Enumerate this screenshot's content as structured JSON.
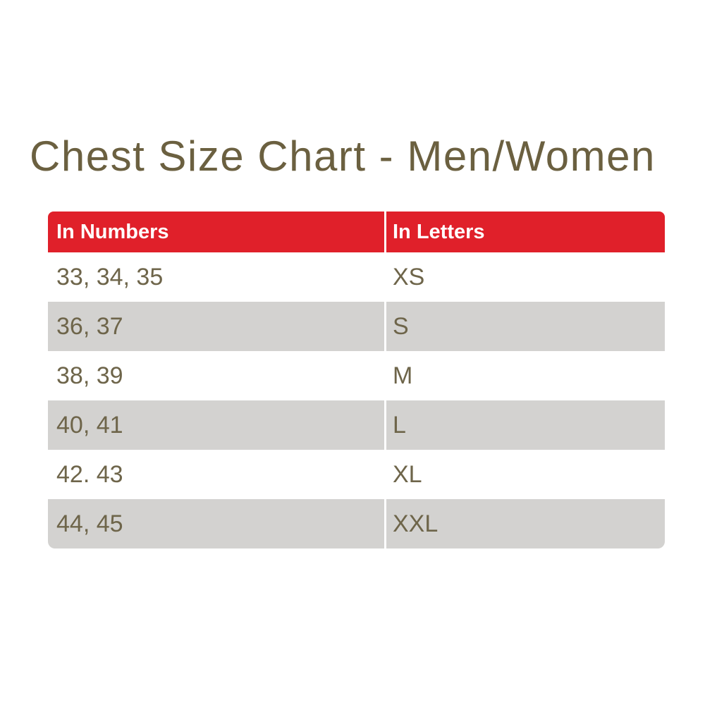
{
  "title": "Chest Size Chart - Men/Women",
  "chart_data": {
    "type": "table",
    "title": "Chest Size Chart - Men/Women",
    "columns": [
      "In Numbers",
      "In Letters"
    ],
    "rows": [
      [
        "33, 34, 35",
        "XS"
      ],
      [
        "36, 37",
        "S"
      ],
      [
        "38, 39",
        "M"
      ],
      [
        "40, 41",
        "L"
      ],
      [
        "42. 43",
        "XL"
      ],
      [
        "44, 45",
        "XXL"
      ]
    ],
    "layout_hints": {
      "header_style": "red bar, white bold text, rounded top corners",
      "row_striping": "white / light gray alternating, rounded bottom corners on last row",
      "column_divider": "white vertical line"
    }
  },
  "colors": {
    "header_bg": "#e0202a",
    "header_text": "#ffffff",
    "row_bg": "#ffffff",
    "row_alt_bg": "#d3d2d0",
    "cell_text": "#6e654a",
    "title_text": "#6b6040",
    "page_bg": "#ffffff"
  }
}
